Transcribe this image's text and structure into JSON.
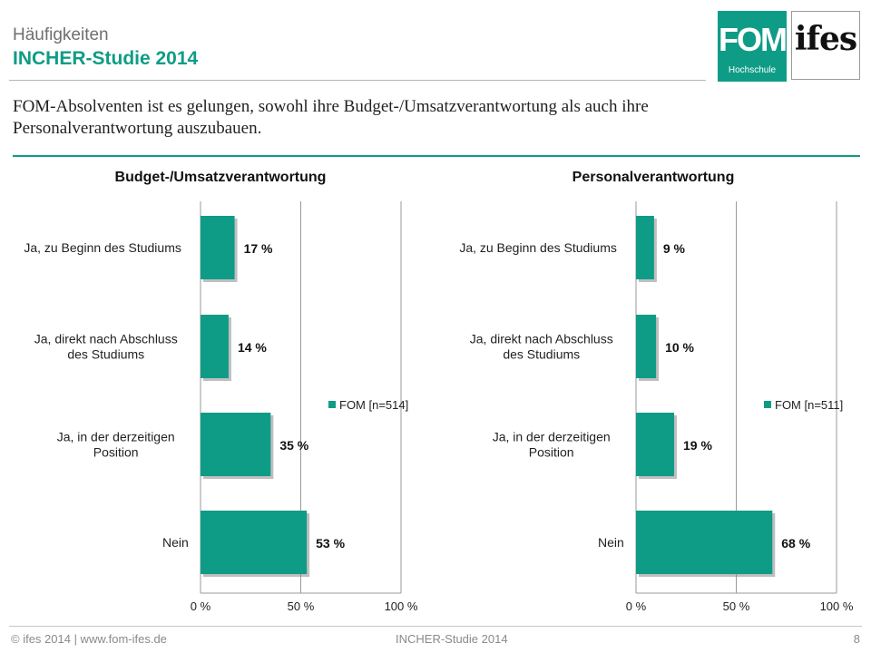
{
  "header": {
    "line1": "Häufigkeiten",
    "line2": "INCHER-Studie 2014",
    "fom_logo_text": "FOM",
    "fom_logo_sub": "Hochschule",
    "ifes_logo_text": "ifes"
  },
  "subtitle": "FOM-Absolventen ist es gelungen, sowohl ihre Budget-/Umsatzverantwortung als auch ihre Personalverantwortung auszubauen.",
  "footer": {
    "left": "© ifes 2014 | www.fom-ifes.de",
    "center": "INCHER-Studie 2014",
    "page": "8"
  },
  "colors": {
    "accent": "#0f9c86",
    "grid": "#9a9a9a"
  },
  "chart_data": [
    {
      "type": "bar",
      "orientation": "horizontal",
      "title": "Budget-/Umsatzverantwortung",
      "categories": [
        "Ja, zu Beginn des Studiums",
        "Ja, direkt nach Abschluss des Studiums",
        "Ja, in der derzeitigen Position",
        "Nein"
      ],
      "category_lines": [
        [
          "Ja, zu Beginn des Studiums"
        ],
        [
          "Ja, direkt nach Abschluss",
          "des Studiums"
        ],
        [
          "Ja, in der derzeitigen",
          "Position"
        ],
        [
          "Nein"
        ]
      ],
      "series": [
        {
          "name": "FOM [n=514]",
          "values": [
            17,
            14,
            35,
            53
          ]
        }
      ],
      "value_labels": [
        "17 %",
        "14 %",
        "35 %",
        "53 %"
      ],
      "xlim": [
        0,
        100
      ],
      "x_ticks": [
        0,
        50,
        100
      ],
      "x_tick_labels": [
        "0 %",
        "50 %",
        "100 %"
      ],
      "grid": true,
      "legend_position": "center-right"
    },
    {
      "type": "bar",
      "orientation": "horizontal",
      "title": "Personalverantwortung",
      "categories": [
        "Ja, zu Beginn des Studiums",
        "Ja, direkt nach Abschluss des Studiums",
        "Ja, in der derzeitigen Position",
        "Nein"
      ],
      "category_lines": [
        [
          "Ja, zu Beginn des Studiums"
        ],
        [
          "Ja, direkt nach Abschluss",
          "des Studiums"
        ],
        [
          "Ja, in der derzeitigen",
          "Position"
        ],
        [
          "Nein"
        ]
      ],
      "series": [
        {
          "name": "FOM [n=511]",
          "values": [
            9,
            10,
            19,
            68
          ]
        }
      ],
      "value_labels": [
        "9 %",
        "10 %",
        "19 %",
        "68 %"
      ],
      "xlim": [
        0,
        100
      ],
      "x_ticks": [
        0,
        50,
        100
      ],
      "x_tick_labels": [
        "0 %",
        "50 %",
        "100 %"
      ],
      "grid": true,
      "legend_position": "center-right"
    }
  ]
}
